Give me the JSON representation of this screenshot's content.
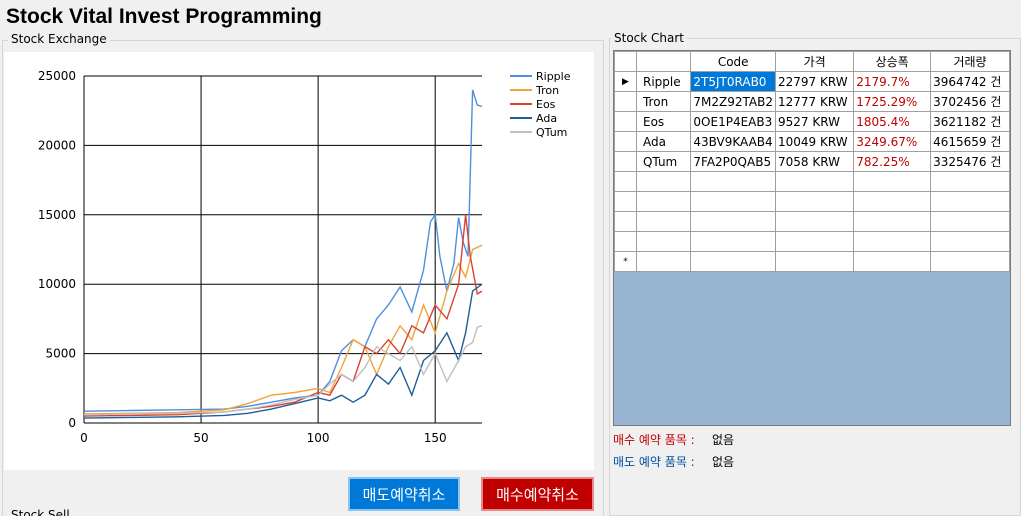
{
  "app": {
    "title": "Stock Vital Invest Programming"
  },
  "exchange_group": {
    "label": "Stock Exchange"
  },
  "chart_group": {
    "label": "Stock Chart"
  },
  "sell_group": {
    "label": "Stock Sell"
  },
  "chart_data": {
    "type": "line",
    "x_ticks": [
      0,
      50,
      100,
      150
    ],
    "y_ticks": [
      0,
      5000,
      10000,
      15000,
      20000,
      25000
    ],
    "xlim": [
      0,
      170
    ],
    "ylim": [
      0,
      25000
    ],
    "grid": true,
    "legend_position": "top-right",
    "series": [
      {
        "name": "Ripple",
        "color": "#4f8fdc",
        "points": [
          [
            0,
            850
          ],
          [
            20,
            900
          ],
          [
            40,
            950
          ],
          [
            60,
            1000
          ],
          [
            70,
            1200
          ],
          [
            80,
            1500
          ],
          [
            90,
            1800
          ],
          [
            100,
            2000
          ],
          [
            105,
            3000
          ],
          [
            110,
            5200
          ],
          [
            115,
            6000
          ],
          [
            120,
            5500
          ],
          [
            125,
            7500
          ],
          [
            130,
            8500
          ],
          [
            135,
            9800
          ],
          [
            140,
            8000
          ],
          [
            145,
            11000
          ],
          [
            148,
            14500
          ],
          [
            150,
            15000
          ],
          [
            152,
            12000
          ],
          [
            155,
            9500
          ],
          [
            158,
            11500
          ],
          [
            160,
            14800
          ],
          [
            162,
            13000
          ],
          [
            164,
            12000
          ],
          [
            166,
            24000
          ],
          [
            168,
            22900
          ],
          [
            170,
            22800
          ]
        ]
      },
      {
        "name": "Tron",
        "color": "#f2a33a",
        "points": [
          [
            0,
            650
          ],
          [
            20,
            700
          ],
          [
            40,
            750
          ],
          [
            60,
            950
          ],
          [
            70,
            1400
          ],
          [
            80,
            2000
          ],
          [
            90,
            2200
          ],
          [
            100,
            2500
          ],
          [
            105,
            2200
          ],
          [
            110,
            4000
          ],
          [
            115,
            6000
          ],
          [
            120,
            5500
          ],
          [
            125,
            3500
          ],
          [
            130,
            5500
          ],
          [
            135,
            7000
          ],
          [
            140,
            6000
          ],
          [
            145,
            8500
          ],
          [
            150,
            6500
          ],
          [
            155,
            9500
          ],
          [
            160,
            11500
          ],
          [
            163,
            10500
          ],
          [
            166,
            12500
          ],
          [
            170,
            12800
          ]
        ]
      },
      {
        "name": "Eos",
        "color": "#d9432f",
        "points": [
          [
            0,
            500
          ],
          [
            20,
            550
          ],
          [
            40,
            600
          ],
          [
            60,
            800
          ],
          [
            70,
            1000
          ],
          [
            80,
            1200
          ],
          [
            90,
            1500
          ],
          [
            100,
            2200
          ],
          [
            105,
            2000
          ],
          [
            110,
            3500
          ],
          [
            115,
            3000
          ],
          [
            120,
            5500
          ],
          [
            125,
            5000
          ],
          [
            130,
            6000
          ],
          [
            135,
            5000
          ],
          [
            140,
            7000
          ],
          [
            145,
            6500
          ],
          [
            150,
            8500
          ],
          [
            155,
            7500
          ],
          [
            160,
            10000
          ],
          [
            163,
            15000
          ],
          [
            165,
            12000
          ],
          [
            168,
            9300
          ],
          [
            170,
            9500
          ]
        ]
      },
      {
        "name": "Ada",
        "color": "#1f5e99",
        "points": [
          [
            0,
            350
          ],
          [
            20,
            400
          ],
          [
            40,
            450
          ],
          [
            60,
            550
          ],
          [
            70,
            700
          ],
          [
            80,
            1000
          ],
          [
            90,
            1400
          ],
          [
            100,
            1800
          ],
          [
            105,
            1600
          ],
          [
            110,
            2000
          ],
          [
            115,
            1500
          ],
          [
            120,
            2000
          ],
          [
            125,
            3500
          ],
          [
            130,
            2800
          ],
          [
            135,
            4000
          ],
          [
            140,
            2000
          ],
          [
            145,
            4500
          ],
          [
            150,
            5200
          ],
          [
            155,
            6500
          ],
          [
            160,
            4500
          ],
          [
            163,
            6500
          ],
          [
            166,
            9500
          ],
          [
            170,
            10000
          ]
        ]
      },
      {
        "name": "QTum",
        "color": "#c0c0c0",
        "points": [
          [
            0,
            600
          ],
          [
            20,
            650
          ],
          [
            40,
            700
          ],
          [
            60,
            800
          ],
          [
            70,
            1000
          ],
          [
            80,
            1300
          ],
          [
            90,
            1700
          ],
          [
            100,
            2000
          ],
          [
            105,
            2800
          ],
          [
            110,
            3500
          ],
          [
            115,
            3000
          ],
          [
            120,
            4000
          ],
          [
            125,
            5500
          ],
          [
            130,
            5000
          ],
          [
            135,
            4500
          ],
          [
            140,
            5500
          ],
          [
            145,
            3500
          ],
          [
            150,
            5000
          ],
          [
            155,
            3000
          ],
          [
            160,
            4500
          ],
          [
            163,
            5500
          ],
          [
            166,
            5800
          ],
          [
            168,
            6900
          ],
          [
            170,
            7000
          ]
        ]
      }
    ]
  },
  "grid": {
    "columns": [
      "",
      "Code",
      "가격",
      "상승폭",
      "거래량"
    ],
    "rows": [
      {
        "name": "Ripple",
        "code": "2T5JT0RAB0",
        "price": "22797 KRW",
        "change": "2179.7%",
        "volume": "3964742 건"
      },
      {
        "name": "Tron",
        "code": "7M2Z92TAB2",
        "price": "12777 KRW",
        "change": "1725.29%",
        "volume": "3702456 건"
      },
      {
        "name": "Eos",
        "code": "0OE1P4EAB3",
        "price": "9527 KRW",
        "change": "1805.4%",
        "volume": "3621182 건"
      },
      {
        "name": "Ada",
        "code": "43BV9KAAB4",
        "price": "10049 KRW",
        "change": "3249.67%",
        "volume": "4615659 건"
      },
      {
        "name": "QTum",
        "code": "7FA2P0QAB5",
        "price": "7058 KRW",
        "change": "782.25%",
        "volume": "3325476 건"
      }
    ],
    "selected_row_marker": "▶",
    "new_row_marker": "*"
  },
  "reservations": {
    "buy_label": "매수 예약 품목 :",
    "buy_value": "없음",
    "sell_label": "매도 예약 품목 :",
    "sell_value": "없음",
    "buy_color": "#c00000",
    "sell_color": "#0050a0"
  },
  "buttons": {
    "cancel_sell": "매도예약취소",
    "cancel_buy": "매수예약취소"
  }
}
